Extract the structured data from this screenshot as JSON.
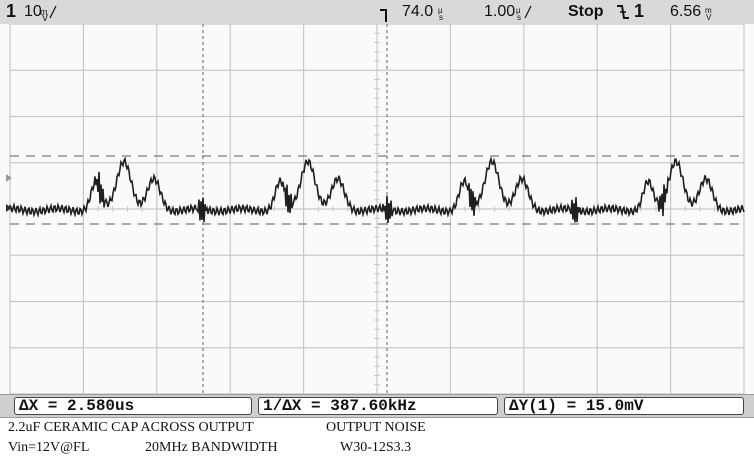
{
  "status_bar": {
    "channel_number": "1",
    "channel_scale": "10",
    "channel_unit_icon": "mV-per-div-glyph",
    "trigger_marker_icon": "trigger-position-marker",
    "time_delay": "74.0",
    "time_delay_unit_icon": "microseconds-glyph",
    "timebase": "1.00",
    "timebase_unit_icon": "microseconds-per-div-glyph",
    "run_state": "Stop",
    "trigger_slope_icon": "falling-edge-icon",
    "trigger_source": "1",
    "trigger_level": "6.56",
    "trigger_level_unit_icon": "mV-glyph"
  },
  "measurements": {
    "delta_x": "ΔX = 2.580us",
    "inverse_delta_x": "1/ΔX = 387.60kHz",
    "delta_y": "ΔY(1) = 15.0mV"
  },
  "captions": {
    "line1_left": "2.2uF CERAMIC CAP ACROSS OUTPUT",
    "line1_right": "OUTPUT NOISE",
    "line2_left": "Vin=12V@FL",
    "line2_middle": "20MHz BANDWIDTH",
    "line2_right": "W30-12S3.3"
  },
  "colors": {
    "trace": "#202020",
    "grid": "#c8c8c8",
    "cursor": "#7a7a7a",
    "screen_bg": "#fafafa",
    "bar_bg": "#d9d9d9"
  }
}
